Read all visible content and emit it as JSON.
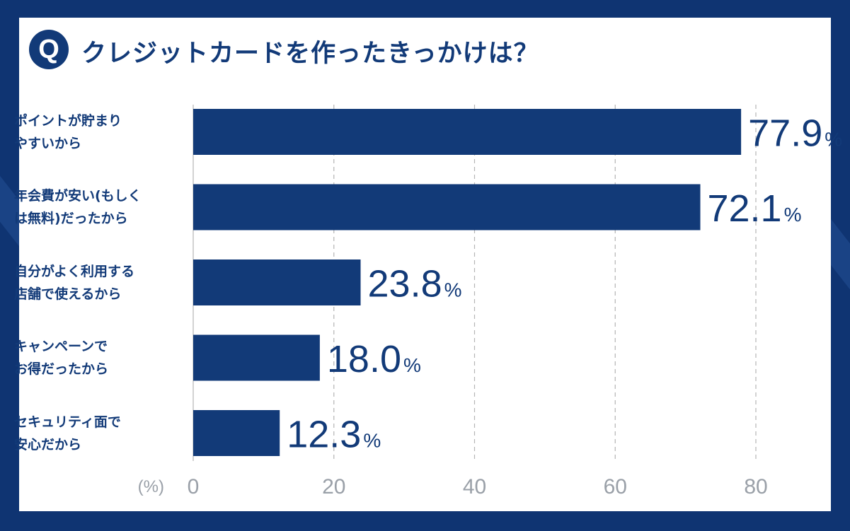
{
  "title": "クレジットカードを作ったきっかけは？",
  "badge": "Q",
  "colors": {
    "bar": "#123a78",
    "text": "#123a78",
    "grid": "#b4b4b4",
    "tick": "#9aa0a8"
  },
  "chart_data": {
    "type": "bar",
    "orientation": "horizontal",
    "title": "クレジットカードを作ったきっかけは？",
    "categories": [
      [
        "ポイントが貯まり",
        "やすいから"
      ],
      [
        "年会費が安い(もしく",
        "は無料)だったから"
      ],
      [
        "自分がよく利用する",
        "店舗で使えるから"
      ],
      [
        "キャンペーンで",
        "お得だったから"
      ],
      [
        "セキュリティ面で",
        "安心だから"
      ]
    ],
    "values": [
      77.9,
      72.1,
      23.8,
      18.0,
      12.3
    ],
    "value_labels": [
      "77.9",
      "72.1",
      "23.8",
      "18.0",
      "12.3"
    ],
    "value_suffix": "%",
    "xlim": [
      0,
      80
    ],
    "xticks": [
      0,
      20,
      40,
      60,
      80
    ],
    "unit_label": "(%)",
    "grid": true
  }
}
